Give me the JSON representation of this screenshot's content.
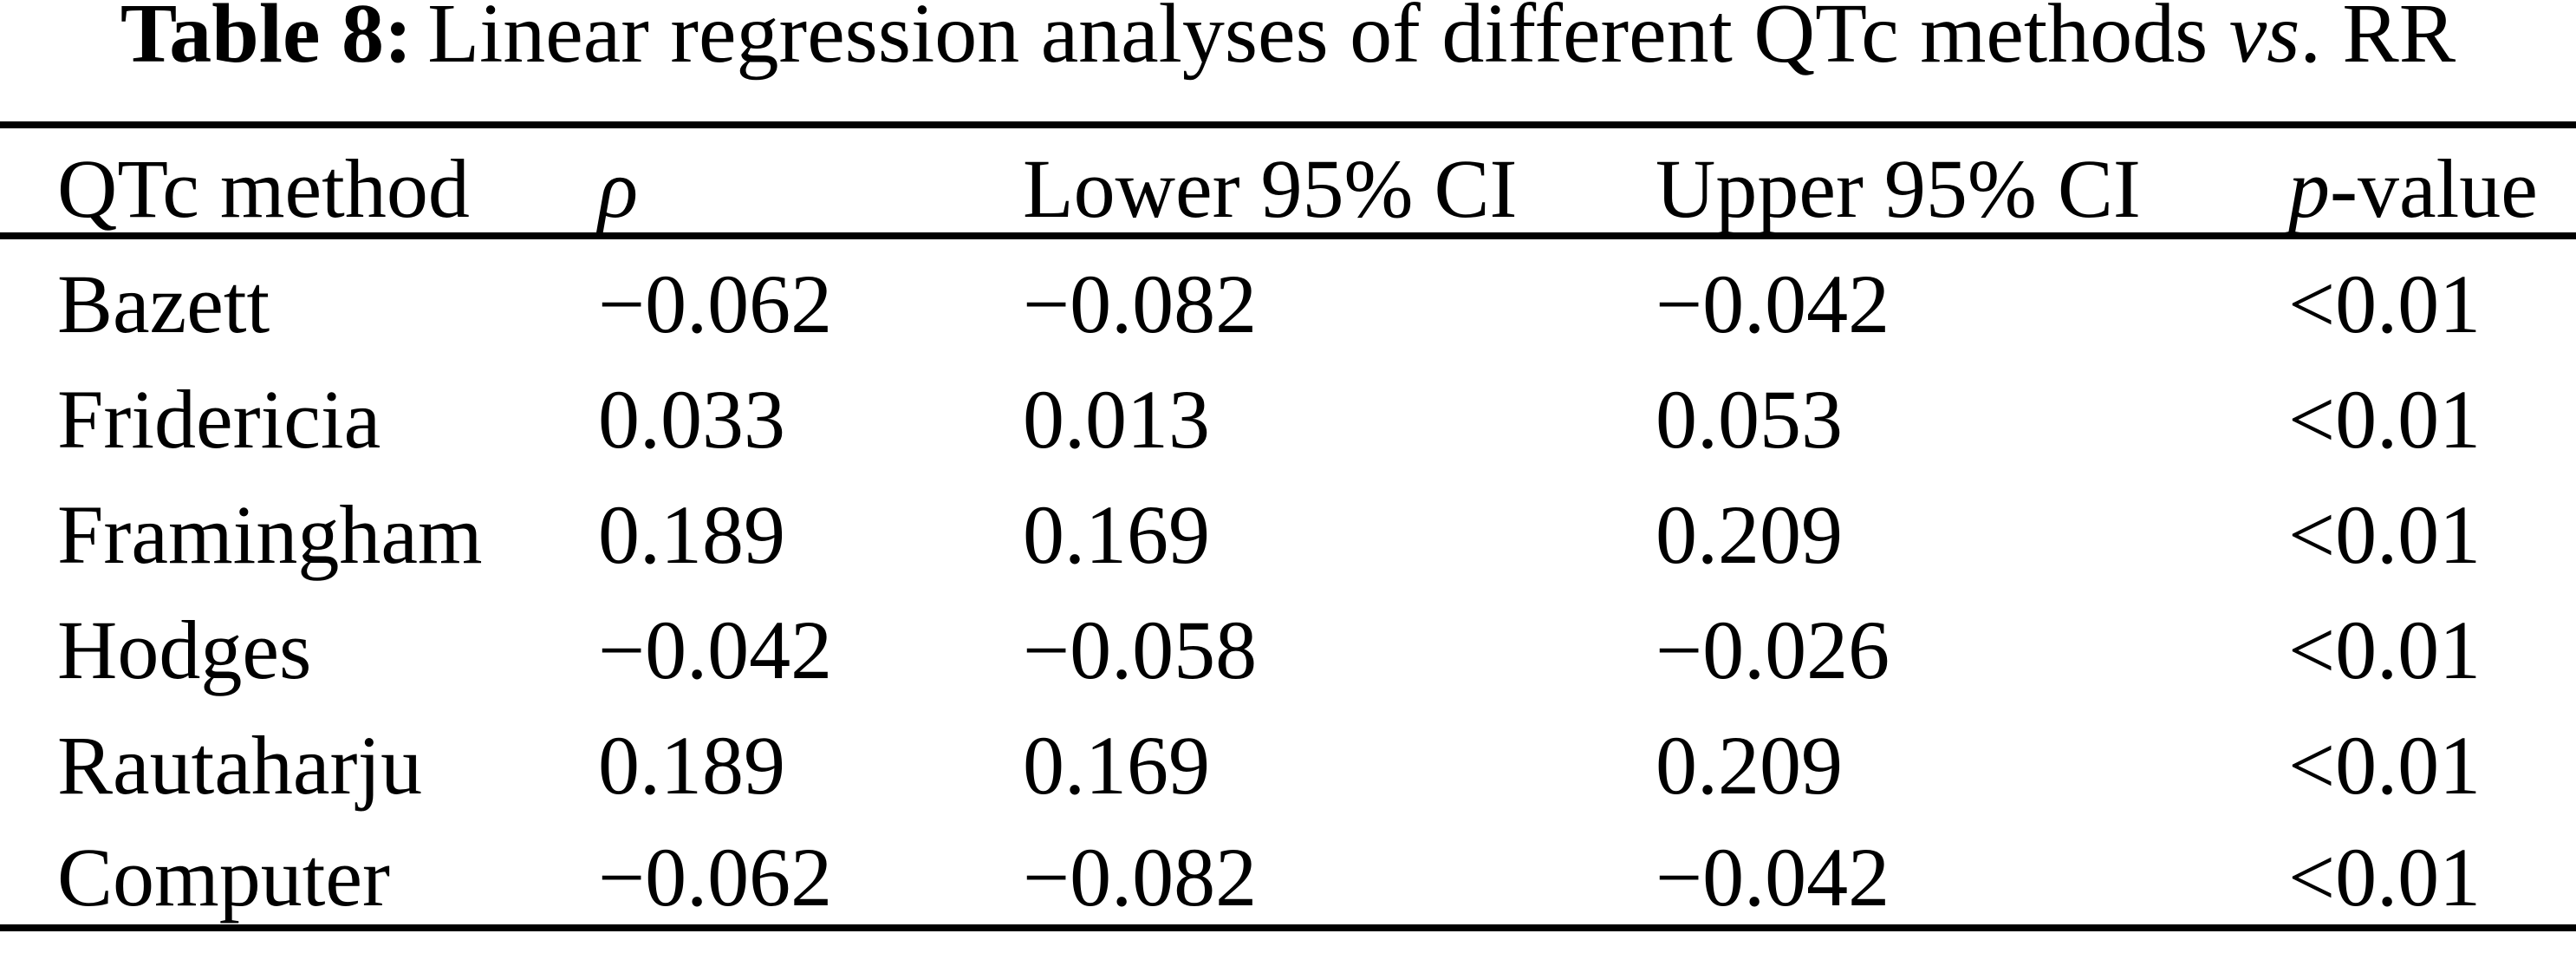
{
  "title": {
    "label": "Table 8:",
    "body": "Linear regression analyses of different QTc methods ",
    "vs": "vs",
    "tail": ". RR"
  },
  "table": {
    "headers": {
      "method": "QTc method",
      "rho": "ρ",
      "lower_ci": "Lower 95% CI",
      "upper_ci": "Upper 95% CI",
      "p_italic": "p",
      "p_rest": "-value"
    },
    "rows": [
      {
        "method": "Bazett",
        "rho": "−0.062",
        "lower": "−0.082",
        "upper": "−0.042",
        "p": "<0.01"
      },
      {
        "method": "Fridericia",
        "rho": "0.033",
        "lower": "0.013",
        "upper": "0.053",
        "p": "<0.01"
      },
      {
        "method": "Framingham",
        "rho": "0.189",
        "lower": "0.169",
        "upper": "0.209",
        "p": "<0.01"
      },
      {
        "method": "Hodges",
        "rho": "−0.042",
        "lower": "−0.058",
        "upper": "−0.026",
        "p": "<0.01"
      },
      {
        "method": "Rautaharju",
        "rho": "0.189",
        "lower": "0.169",
        "upper": "0.209",
        "p": "<0.01"
      },
      {
        "method": "Computer",
        "rho": "−0.062",
        "lower": "−0.082",
        "upper": "−0.042",
        "p": "<0.01"
      }
    ]
  },
  "chart_data": {
    "type": "table",
    "title": "Table 8: Linear regression analyses of different QTc methods vs. RR",
    "columns": [
      "QTc method",
      "rho",
      "Lower 95% CI",
      "Upper 95% CI",
      "p-value"
    ],
    "rows": [
      [
        "Bazett",
        -0.062,
        -0.082,
        -0.042,
        "<0.01"
      ],
      [
        "Fridericia",
        0.033,
        0.013,
        0.053,
        "<0.01"
      ],
      [
        "Framingham",
        0.189,
        0.169,
        0.209,
        "<0.01"
      ],
      [
        "Hodges",
        -0.042,
        -0.058,
        -0.026,
        "<0.01"
      ],
      [
        "Rautaharju",
        0.189,
        0.169,
        0.209,
        "<0.01"
      ],
      [
        "Computer",
        -0.062,
        -0.082,
        -0.042,
        "<0.01"
      ]
    ]
  }
}
